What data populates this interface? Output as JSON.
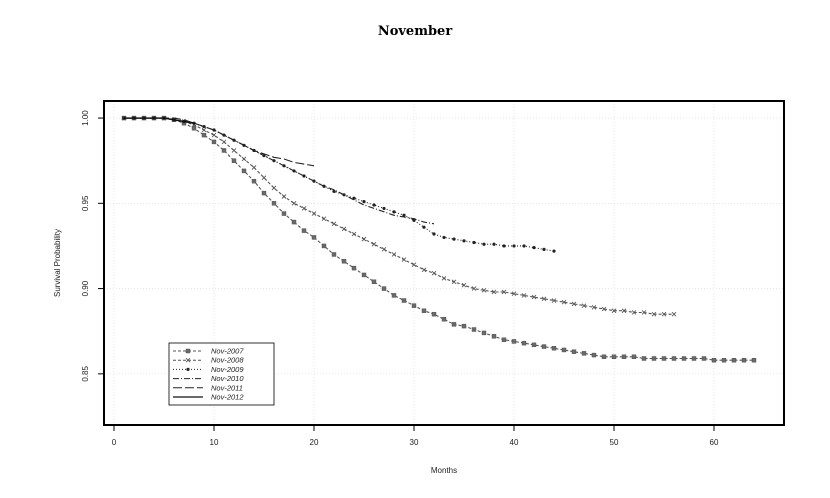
{
  "page": {
    "title": "November"
  },
  "chart_data": {
    "type": "line",
    "title": "November",
    "xlabel": "Months",
    "ylabel": "Survival Probability",
    "xlim": [
      -1,
      67
    ],
    "ylim": [
      0.82,
      1.01
    ],
    "x_ticks": [
      0,
      10,
      20,
      30,
      40,
      50,
      60
    ],
    "y_ticks": [
      0.85,
      0.9,
      0.95,
      1.0
    ],
    "y_tick_labels": [
      "0.85",
      "0.90",
      "0.95",
      "1.00"
    ],
    "grid": true,
    "legend_position": "bottom-left",
    "series": [
      {
        "name": "Nov-2007",
        "style": "dashed-square",
        "color": "#555555",
        "x": [
          1,
          2,
          3,
          4,
          5,
          6,
          7,
          8,
          9,
          10,
          11,
          12,
          13,
          14,
          15,
          16,
          17,
          18,
          19,
          20,
          21,
          22,
          23,
          24,
          25,
          26,
          27,
          28,
          29,
          30,
          31,
          32,
          33,
          34,
          35,
          36,
          37,
          38,
          39,
          40,
          41,
          42,
          43,
          44,
          45,
          46,
          47,
          48,
          49,
          50,
          51,
          52,
          53,
          54,
          55,
          56,
          57,
          58,
          59,
          60,
          61,
          62,
          63,
          64
        ],
        "y": [
          1.0,
          1.0,
          1.0,
          1.0,
          1.0,
          0.999,
          0.997,
          0.994,
          0.99,
          0.986,
          0.981,
          0.975,
          0.969,
          0.963,
          0.956,
          0.95,
          0.944,
          0.939,
          0.934,
          0.93,
          0.925,
          0.92,
          0.916,
          0.912,
          0.908,
          0.904,
          0.9,
          0.896,
          0.893,
          0.89,
          0.887,
          0.885,
          0.882,
          0.879,
          0.878,
          0.876,
          0.874,
          0.872,
          0.87,
          0.869,
          0.868,
          0.867,
          0.866,
          0.865,
          0.864,
          0.863,
          0.862,
          0.861,
          0.86,
          0.86,
          0.86,
          0.86,
          0.859,
          0.859,
          0.859,
          0.859,
          0.859,
          0.859,
          0.859,
          0.858,
          0.858,
          0.858,
          0.858,
          0.858
        ]
      },
      {
        "name": "Nov-2008",
        "style": "dashed-cross",
        "color": "#555555",
        "x": [
          1,
          2,
          3,
          4,
          5,
          6,
          7,
          8,
          9,
          10,
          11,
          12,
          13,
          14,
          15,
          16,
          17,
          18,
          19,
          20,
          21,
          22,
          23,
          24,
          25,
          26,
          27,
          28,
          29,
          30,
          31,
          32,
          33,
          34,
          35,
          36,
          37,
          38,
          39,
          40,
          41,
          42,
          43,
          44,
          45,
          46,
          47,
          48,
          49,
          50,
          51,
          52,
          53,
          54,
          55,
          56
        ],
        "y": [
          1.0,
          1.0,
          1.0,
          1.0,
          1.0,
          0.999,
          0.998,
          0.996,
          0.993,
          0.99,
          0.986,
          0.981,
          0.976,
          0.971,
          0.965,
          0.959,
          0.954,
          0.95,
          0.947,
          0.944,
          0.941,
          0.938,
          0.935,
          0.932,
          0.929,
          0.926,
          0.923,
          0.92,
          0.917,
          0.914,
          0.911,
          0.909,
          0.906,
          0.904,
          0.902,
          0.9,
          0.899,
          0.898,
          0.898,
          0.897,
          0.896,
          0.895,
          0.894,
          0.893,
          0.892,
          0.891,
          0.89,
          0.889,
          0.888,
          0.887,
          0.887,
          0.886,
          0.886,
          0.885,
          0.885,
          0.885
        ]
      },
      {
        "name": "Nov-2009",
        "style": "dotted-dot",
        "color": "#222222",
        "x": [
          1,
          2,
          3,
          4,
          5,
          6,
          7,
          8,
          9,
          10,
          11,
          12,
          13,
          14,
          15,
          16,
          17,
          18,
          19,
          20,
          21,
          22,
          23,
          24,
          25,
          26,
          27,
          28,
          29,
          30,
          31,
          32,
          33,
          34,
          35,
          36,
          37,
          38,
          39,
          40,
          41,
          42,
          43,
          44
        ],
        "y": [
          1.0,
          1.0,
          1.0,
          1.0,
          1.0,
          0.999,
          0.998,
          0.997,
          0.995,
          0.993,
          0.99,
          0.987,
          0.984,
          0.981,
          0.978,
          0.975,
          0.972,
          0.969,
          0.966,
          0.963,
          0.96,
          0.957,
          0.955,
          0.953,
          0.951,
          0.949,
          0.947,
          0.945,
          0.943,
          0.94,
          0.936,
          0.932,
          0.93,
          0.929,
          0.928,
          0.927,
          0.926,
          0.926,
          0.925,
          0.925,
          0.925,
          0.924,
          0.923,
          0.922
        ]
      },
      {
        "name": "Nov-2010",
        "style": "dashdot",
        "color": "#222222",
        "x": [
          1,
          2,
          3,
          4,
          5,
          6,
          7,
          8,
          9,
          10,
          11,
          12,
          13,
          14,
          15,
          16,
          17,
          18,
          19,
          20,
          21,
          22,
          23,
          24,
          25,
          26,
          27,
          28,
          29,
          30,
          31,
          32
        ],
        "y": [
          1.0,
          1.0,
          1.0,
          1.0,
          1.0,
          0.999,
          0.998,
          0.997,
          0.995,
          0.993,
          0.99,
          0.987,
          0.984,
          0.981,
          0.978,
          0.975,
          0.972,
          0.969,
          0.966,
          0.963,
          0.96,
          0.958,
          0.955,
          0.952,
          0.949,
          0.947,
          0.945,
          0.943,
          0.942,
          0.941,
          0.939,
          0.938
        ]
      },
      {
        "name": "Nov-2011",
        "style": "longdash",
        "color": "#222222",
        "x": [
          1,
          2,
          3,
          4,
          5,
          6,
          7,
          8,
          9,
          10,
          11,
          12,
          13,
          14,
          15,
          16,
          17,
          18,
          19,
          20
        ],
        "y": [
          1.0,
          1.0,
          1.0,
          1.0,
          1.0,
          1.0,
          0.999,
          0.997,
          0.995,
          0.993,
          0.99,
          0.987,
          0.984,
          0.981,
          0.979,
          0.977,
          0.976,
          0.974,
          0.973,
          0.972
        ]
      },
      {
        "name": "Nov-2012",
        "style": "solid",
        "color": "#111111",
        "x": [
          1,
          2,
          3,
          4,
          5,
          6,
          7,
          8
        ],
        "y": [
          1.0,
          1.0,
          1.0,
          1.0,
          1.0,
          0.999,
          0.998,
          0.997
        ]
      }
    ]
  }
}
